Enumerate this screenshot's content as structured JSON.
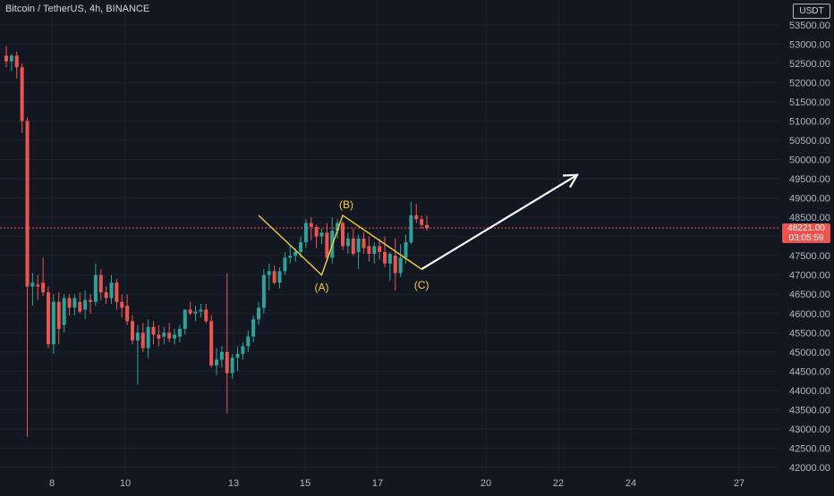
{
  "header": {
    "symbol": "Bitcoin / TetherUS, 4h, BINANCE"
  },
  "price_axis": {
    "unit": "USDT",
    "ticks": [
      "53500.00",
      "53000.00",
      "52500.00",
      "52000.00",
      "51500.00",
      "51000.00",
      "50500.00",
      "50000.00",
      "49500.00",
      "49000.00",
      "48500.00",
      "48000.00",
      "47500.00",
      "47000.00",
      "46500.00",
      "46000.00",
      "45500.00",
      "45000.00",
      "44500.00",
      "44000.00",
      "43500.00",
      "43000.00",
      "42500.00",
      "42000.00"
    ],
    "current_price": "48221.00",
    "countdown": "03:05:59"
  },
  "time_axis": {
    "ticks": [
      "8",
      "10",
      "13",
      "15",
      "17",
      "20",
      "22",
      "24",
      "27"
    ]
  },
  "colors": {
    "up": "#26a69a",
    "down": "#ef5350",
    "wave": "#f0d030",
    "arrow": "#ffffff",
    "background": "#131722",
    "grid": "#1e222d"
  },
  "annotations": {
    "a": "(A)",
    "b": "(B)",
    "c": "(C)"
  },
  "chart_data": {
    "type": "candlestick",
    "title": "Bitcoin / TetherUS, 4h, BINANCE",
    "ylim": [
      41900,
      54000
    ],
    "current_price": 48221,
    "grid": true,
    "candles": [
      {
        "o": 52700,
        "h": 52950,
        "l": 52400,
        "c": 52550
      },
      {
        "o": 52550,
        "h": 52750,
        "l": 52300,
        "c": 52700
      },
      {
        "o": 52700,
        "h": 52800,
        "l": 52100,
        "c": 52400
      },
      {
        "o": 52400,
        "h": 52500,
        "l": 50700,
        "c": 51000
      },
      {
        "o": 51000,
        "h": 51100,
        "l": 42800,
        "c": 46700
      },
      {
        "o": 46700,
        "h": 47050,
        "l": 46200,
        "c": 46800
      },
      {
        "o": 46750,
        "h": 47000,
        "l": 46350,
        "c": 46700
      },
      {
        "o": 46800,
        "h": 47450,
        "l": 46450,
        "c": 46550
      },
      {
        "o": 46550,
        "h": 46700,
        "l": 45100,
        "c": 45200
      },
      {
        "o": 45200,
        "h": 46500,
        "l": 44950,
        "c": 46300
      },
      {
        "o": 46300,
        "h": 46550,
        "l": 45200,
        "c": 45600
      },
      {
        "o": 45700,
        "h": 46500,
        "l": 45500,
        "c": 46400
      },
      {
        "o": 46400,
        "h": 46500,
        "l": 45950,
        "c": 46150
      },
      {
        "o": 46150,
        "h": 46500,
        "l": 45950,
        "c": 46400
      },
      {
        "o": 46300,
        "h": 46550,
        "l": 46000,
        "c": 46050
      },
      {
        "o": 46100,
        "h": 46600,
        "l": 45850,
        "c": 46350
      },
      {
        "o": 46350,
        "h": 46500,
        "l": 46000,
        "c": 46300
      },
      {
        "o": 46300,
        "h": 47300,
        "l": 46200,
        "c": 47000
      },
      {
        "o": 47000,
        "h": 47150,
        "l": 46350,
        "c": 46550
      },
      {
        "o": 46550,
        "h": 46700,
        "l": 46250,
        "c": 46400
      },
      {
        "o": 46400,
        "h": 47000,
        "l": 46250,
        "c": 46800
      },
      {
        "o": 46800,
        "h": 46900,
        "l": 46100,
        "c": 46300
      },
      {
        "o": 46300,
        "h": 46500,
        "l": 45900,
        "c": 46150
      },
      {
        "o": 46200,
        "h": 46500,
        "l": 45700,
        "c": 45800
      },
      {
        "o": 45800,
        "h": 45950,
        "l": 45200,
        "c": 45300
      },
      {
        "o": 45300,
        "h": 45700,
        "l": 44150,
        "c": 45500
      },
      {
        "o": 45500,
        "h": 45750,
        "l": 45000,
        "c": 45100
      },
      {
        "o": 45100,
        "h": 45850,
        "l": 44850,
        "c": 45650
      },
      {
        "o": 45650,
        "h": 45800,
        "l": 45200,
        "c": 45450
      },
      {
        "o": 45450,
        "h": 45700,
        "l": 45150,
        "c": 45350
      },
      {
        "o": 45400,
        "h": 45650,
        "l": 45200,
        "c": 45500
      },
      {
        "o": 45500,
        "h": 45750,
        "l": 45250,
        "c": 45350
      },
      {
        "o": 45350,
        "h": 45600,
        "l": 45200,
        "c": 45450
      },
      {
        "o": 45400,
        "h": 45700,
        "l": 45250,
        "c": 45600
      },
      {
        "o": 45600,
        "h": 46100,
        "l": 45450,
        "c": 46100
      },
      {
        "o": 46100,
        "h": 46300,
        "l": 45950,
        "c": 46000
      },
      {
        "o": 46000,
        "h": 46200,
        "l": 45800,
        "c": 46050
      },
      {
        "o": 46050,
        "h": 46250,
        "l": 45900,
        "c": 46100
      },
      {
        "o": 46100,
        "h": 46250,
        "l": 45750,
        "c": 45800
      },
      {
        "o": 45800,
        "h": 45950,
        "l": 44600,
        "c": 44650
      },
      {
        "o": 44650,
        "h": 45100,
        "l": 44400,
        "c": 44800
      },
      {
        "o": 44800,
        "h": 45150,
        "l": 44600,
        "c": 45000
      },
      {
        "o": 45000,
        "h": 47050,
        "l": 43400,
        "c": 44450
      },
      {
        "o": 44450,
        "h": 44950,
        "l": 44300,
        "c": 44850
      },
      {
        "o": 44850,
        "h": 45150,
        "l": 44500,
        "c": 44950
      },
      {
        "o": 44950,
        "h": 45250,
        "l": 44800,
        "c": 45150
      },
      {
        "o": 45150,
        "h": 45550,
        "l": 45000,
        "c": 45400
      },
      {
        "o": 45400,
        "h": 45950,
        "l": 45250,
        "c": 45850
      },
      {
        "o": 45850,
        "h": 46300,
        "l": 45700,
        "c": 46150
      },
      {
        "o": 46150,
        "h": 47150,
        "l": 46000,
        "c": 47000
      },
      {
        "o": 47000,
        "h": 47300,
        "l": 46600,
        "c": 47100
      },
      {
        "o": 47100,
        "h": 47250,
        "l": 46750,
        "c": 46800
      },
      {
        "o": 46800,
        "h": 47200,
        "l": 46650,
        "c": 47100
      },
      {
        "o": 47100,
        "h": 47600,
        "l": 47000,
        "c": 47450
      },
      {
        "o": 47450,
        "h": 47750,
        "l": 47300,
        "c": 47500
      },
      {
        "o": 47500,
        "h": 47700,
        "l": 47350,
        "c": 47600
      },
      {
        "o": 47600,
        "h": 48000,
        "l": 47450,
        "c": 47850
      },
      {
        "o": 47850,
        "h": 48450,
        "l": 47700,
        "c": 48350
      },
      {
        "o": 48350,
        "h": 48500,
        "l": 47900,
        "c": 48250
      },
      {
        "o": 48250,
        "h": 48300,
        "l": 47700,
        "c": 48000
      },
      {
        "o": 48000,
        "h": 48200,
        "l": 47800,
        "c": 48100
      },
      {
        "o": 48100,
        "h": 48350,
        "l": 47350,
        "c": 47450
      },
      {
        "o": 47450,
        "h": 48500,
        "l": 47300,
        "c": 48150
      },
      {
        "o": 48150,
        "h": 48450,
        "l": 47950,
        "c": 48350
      },
      {
        "o": 48350,
        "h": 48400,
        "l": 47650,
        "c": 47750
      },
      {
        "o": 47750,
        "h": 48100,
        "l": 47550,
        "c": 47950
      },
      {
        "o": 47950,
        "h": 48200,
        "l": 47500,
        "c": 47550
      },
      {
        "o": 47600,
        "h": 48050,
        "l": 47150,
        "c": 47950
      },
      {
        "o": 47950,
        "h": 48100,
        "l": 47550,
        "c": 47700
      },
      {
        "o": 47750,
        "h": 48000,
        "l": 47350,
        "c": 47550
      },
      {
        "o": 47550,
        "h": 47850,
        "l": 47300,
        "c": 47750
      },
      {
        "o": 47750,
        "h": 47950,
        "l": 47400,
        "c": 47600
      },
      {
        "o": 47600,
        "h": 48000,
        "l": 47200,
        "c": 47300
      },
      {
        "o": 47300,
        "h": 47600,
        "l": 46850,
        "c": 47550
      },
      {
        "o": 47500,
        "h": 47950,
        "l": 46600,
        "c": 47050
      },
      {
        "o": 47050,
        "h": 47800,
        "l": 46950,
        "c": 47450
      },
      {
        "o": 47450,
        "h": 48050,
        "l": 47300,
        "c": 47850
      },
      {
        "o": 47850,
        "h": 48900,
        "l": 47800,
        "c": 48550
      },
      {
        "o": 48550,
        "h": 48850,
        "l": 48350,
        "c": 48450
      },
      {
        "o": 48450,
        "h": 48550,
        "l": 48200,
        "c": 48300
      },
      {
        "o": 48300,
        "h": 48550,
        "l": 48150,
        "c": 48221
      }
    ],
    "projection": {
      "wave_path": [
        {
          "label": "",
          "candle": 48,
          "price": 48550
        },
        {
          "label": "(A)",
          "candle": 60,
          "price": 47000
        },
        {
          "label": "(B)",
          "candle": 64,
          "price": 48550
        },
        {
          "label": "(C)",
          "candle": 79,
          "price": 47150
        }
      ],
      "arrow_target_price": 49600
    }
  }
}
